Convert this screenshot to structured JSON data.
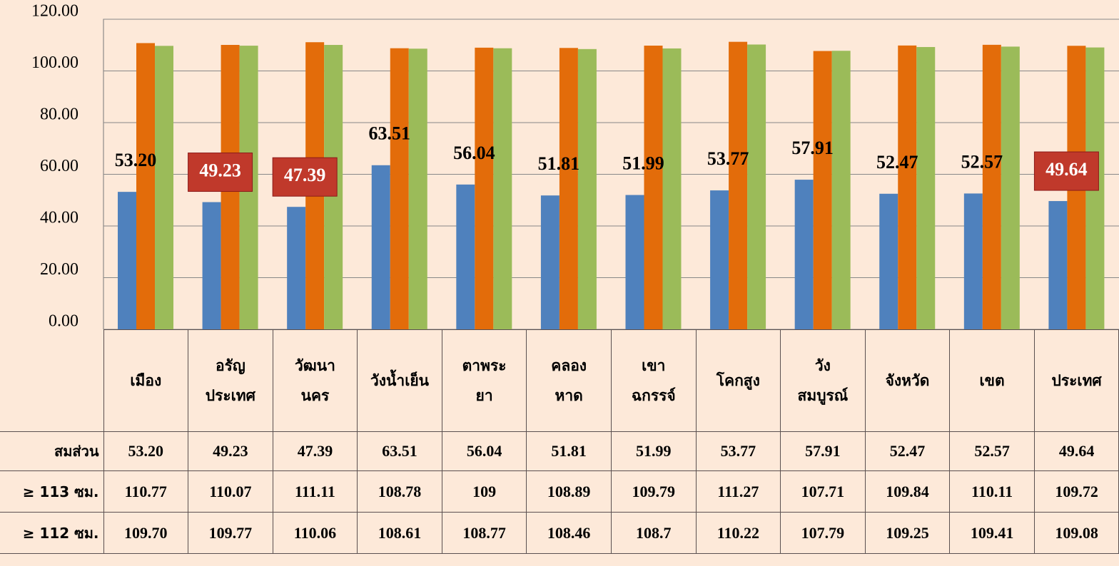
{
  "chart_data": {
    "type": "bar",
    "categories": [
      "เมือง",
      "อรัญ\nประเทศ",
      "วัฒนา\nนคร",
      "วังน้ำเย็น",
      "ตาพระ\nยา",
      "คลอง\nหาด",
      "เขา\nฉกรรจ์",
      "โคกสูง",
      "วัง\nสมบูรณ์",
      "จังหวัด",
      "เขต",
      "ประเทศ"
    ],
    "series": [
      {
        "name": "สมส่วน",
        "color": "#4f81bd",
        "values": [
          53.2,
          49.23,
          47.39,
          63.51,
          56.04,
          51.81,
          51.99,
          53.77,
          57.91,
          52.47,
          52.57,
          49.64
        ],
        "value_labels": [
          "53.20",
          "49.23",
          "47.39",
          "63.51",
          "56.04",
          "51.81",
          "51.99",
          "53.77",
          "57.91",
          "52.47",
          "52.57",
          "49.64"
        ]
      },
      {
        "name": "≥ 113 ซม.",
        "color": "#e36c0a",
        "values": [
          110.77,
          110.07,
          111.11,
          108.78,
          109,
          108.89,
          109.79,
          111.27,
          107.71,
          109.84,
          110.11,
          109.72
        ],
        "value_labels": [
          "110.77",
          "110.07",
          "111.11",
          "108.78",
          "109",
          "108.89",
          "109.79",
          "111.27",
          "107.71",
          "109.84",
          "110.11",
          "109.72"
        ]
      },
      {
        "name": "≥ 112 ซม.",
        "color": "#9bbb59",
        "values": [
          109.7,
          109.77,
          110.06,
          108.61,
          108.77,
          108.46,
          108.7,
          110.22,
          107.79,
          109.25,
          109.41,
          109.08
        ],
        "value_labels": [
          "109.70",
          "109.77",
          "110.06",
          "108.61",
          "108.77",
          "108.46",
          "108.7",
          "110.22",
          "107.79",
          "109.25",
          "109.41",
          "109.08"
        ]
      }
    ],
    "ylim": [
      0,
      120
    ],
    "yticks": [
      {
        "value": 0,
        "label": "0.00"
      },
      {
        "value": 20,
        "label": "20.00"
      },
      {
        "value": 40,
        "label": "40.00"
      },
      {
        "value": 60,
        "label": "60.00"
      },
      {
        "value": 80,
        "label": "80.00"
      },
      {
        "value": 100,
        "label": "100.00"
      },
      {
        "value": 120,
        "label": "120.00"
      }
    ],
    "grid": true,
    "highlighted": [
      1,
      2,
      11
    ],
    "highlight_color": "#c0392b"
  }
}
